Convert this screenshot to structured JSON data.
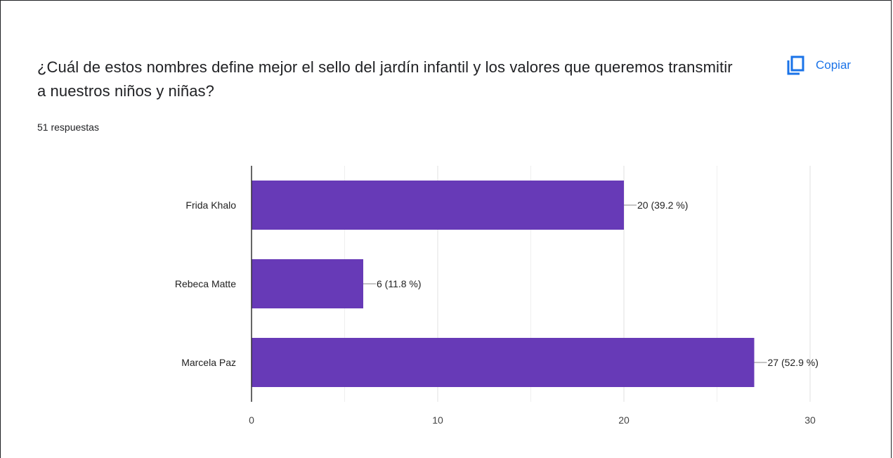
{
  "question": {
    "title": "¿Cuál de estos nombres define mejor el sello del jardín infantil y los valores que queremos transmitir a nuestros niños y niñas?",
    "response_count": "51 respuestas"
  },
  "copy_button": {
    "label": "Copiar",
    "icon": "copy-icon",
    "color": "#1a73e8"
  },
  "chart_data": {
    "type": "bar",
    "orientation": "horizontal",
    "categories": [
      "Frida Khalo",
      "Rebeca Matte",
      "Marcela Paz"
    ],
    "values": [
      20,
      6,
      27
    ],
    "data_labels": [
      "20 (39.2 %)",
      "6 (11.8 %)",
      "27 (52.9 %)"
    ],
    "xlim": [
      0,
      30
    ],
    "x_ticks": [
      0,
      10,
      20,
      30
    ],
    "x_tick_labels": [
      "0",
      "10",
      "20",
      "30"
    ],
    "grid": true,
    "bar_color": "#673ab7"
  }
}
